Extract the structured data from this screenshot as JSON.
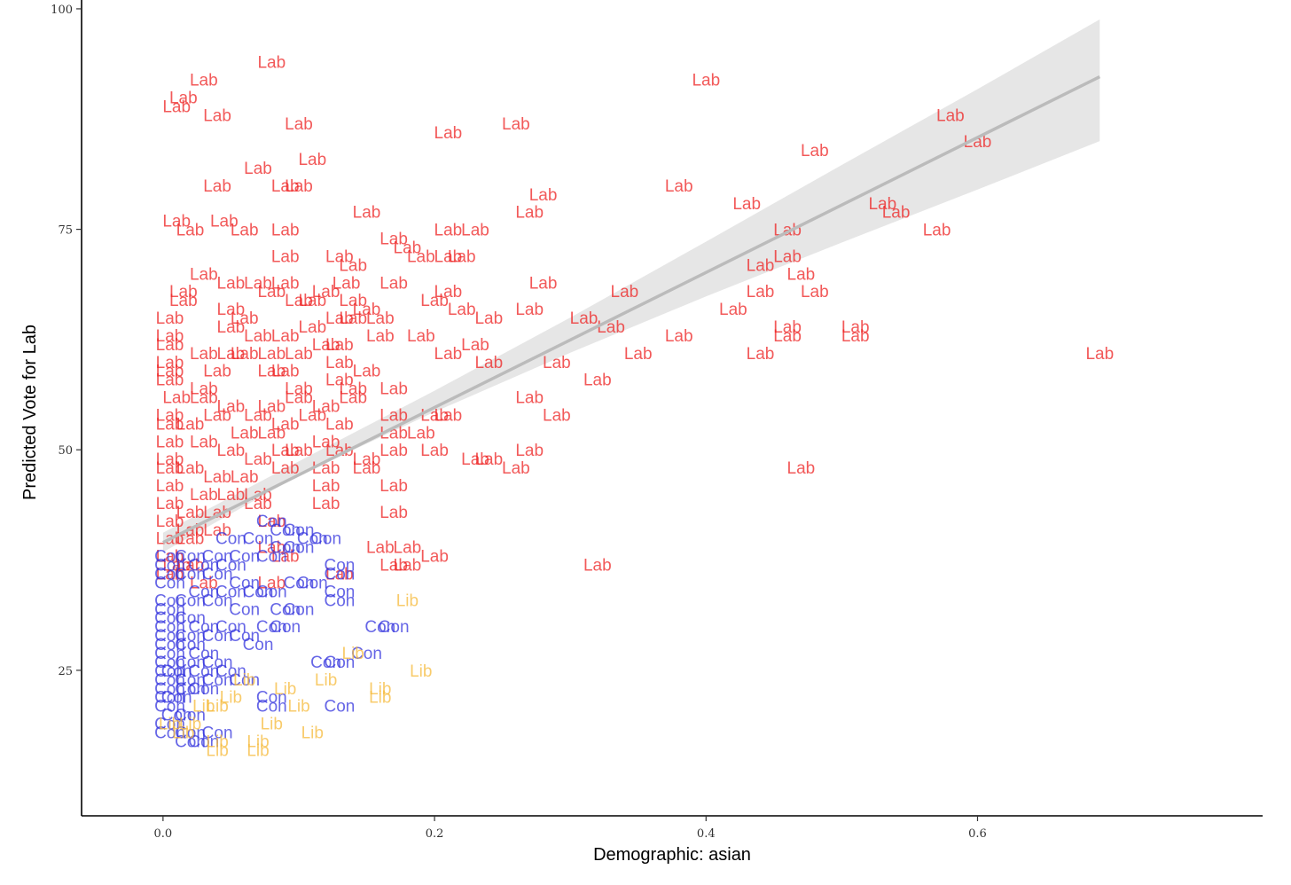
{
  "chart_data": {
    "type": "scatter",
    "xlabel": "Demographic: asian",
    "ylabel": "Predicted Vote for Lab",
    "xlim": [
      -0.06,
      0.81
    ],
    "ylim": [
      8.5,
      101
    ],
    "xticks": [
      0.0,
      0.2,
      0.4,
      0.6
    ],
    "xtick_labels": [
      "0.0",
      "0.2",
      "0.4",
      "0.6"
    ],
    "yticks": [
      25,
      50,
      75,
      100
    ],
    "ytick_labels": [
      "25",
      "50",
      "75",
      "100"
    ],
    "grid": false,
    "legend": "none",
    "colors": {
      "Lab": "#ee2222",
      "Con": "#3333dd",
      "Lib": "#f5b93a",
      "fit": "#bbbbbb",
      "band": "#e6e6e6"
    },
    "fit_line": {
      "x0": 0.0,
      "y0": 39.5,
      "x1": 0.69,
      "y1": 92.3
    },
    "confidence_band": {
      "x": [
        0.0,
        0.1,
        0.2,
        0.3,
        0.4,
        0.5,
        0.6,
        0.69
      ],
      "lower": [
        38.4,
        47.1,
        54.3,
        61.0,
        67.4,
        73.5,
        79.5,
        85.0
      ],
      "upper": [
        40.6,
        48.7,
        56.7,
        65.0,
        73.6,
        82.3,
        90.9,
        98.8
      ]
    },
    "series": [
      {
        "name": "Lab",
        "points": [
          [
            0.08,
            94
          ],
          [
            0.03,
            92
          ],
          [
            0.015,
            90
          ],
          [
            0.01,
            89
          ],
          [
            0.4,
            92
          ],
          [
            0.04,
            88
          ],
          [
            0.1,
            87
          ],
          [
            0.58,
            88
          ],
          [
            0.21,
            86
          ],
          [
            0.26,
            87
          ],
          [
            0.6,
            85
          ],
          [
            0.11,
            83
          ],
          [
            0.48,
            84
          ],
          [
            0.07,
            82
          ],
          [
            0.04,
            80
          ],
          [
            0.09,
            80
          ],
          [
            0.1,
            80
          ],
          [
            0.38,
            80
          ],
          [
            0.28,
            79
          ],
          [
            0.43,
            78
          ],
          [
            0.53,
            78
          ],
          [
            0.54,
            77
          ],
          [
            0.27,
            77
          ],
          [
            0.01,
            76
          ],
          [
            0.15,
            77
          ],
          [
            0.06,
            75
          ],
          [
            0.045,
            76
          ],
          [
            0.09,
            75
          ],
          [
            0.21,
            75
          ],
          [
            0.23,
            75
          ],
          [
            0.02,
            75
          ],
          [
            0.17,
            74
          ],
          [
            0.18,
            73
          ],
          [
            0.46,
            75
          ],
          [
            0.57,
            75
          ],
          [
            0.09,
            72
          ],
          [
            0.13,
            72
          ],
          [
            0.19,
            72
          ],
          [
            0.22,
            72
          ],
          [
            0.21,
            72
          ],
          [
            0.14,
            71
          ],
          [
            0.03,
            70
          ],
          [
            0.05,
            69
          ],
          [
            0.07,
            69
          ],
          [
            0.09,
            69
          ],
          [
            0.44,
            71
          ],
          [
            0.46,
            72
          ],
          [
            0.47,
            70
          ],
          [
            0.015,
            68
          ],
          [
            0.08,
            68
          ],
          [
            0.12,
            68
          ],
          [
            0.135,
            69
          ],
          [
            0.17,
            69
          ],
          [
            0.28,
            69
          ],
          [
            0.34,
            68
          ],
          [
            0.48,
            68
          ],
          [
            0.2,
            67
          ],
          [
            0.21,
            68
          ],
          [
            0.015,
            67
          ],
          [
            0.05,
            66
          ],
          [
            0.06,
            65
          ],
          [
            0.1,
            67
          ],
          [
            0.11,
            67
          ],
          [
            0.14,
            67
          ],
          [
            0.15,
            66
          ],
          [
            0.16,
            65
          ],
          [
            0.22,
            66
          ],
          [
            0.24,
            65
          ],
          [
            0.27,
            66
          ],
          [
            0.31,
            65
          ],
          [
            0.33,
            64
          ],
          [
            0.42,
            66
          ],
          [
            0.44,
            68
          ],
          [
            0.46,
            64
          ],
          [
            0.51,
            64
          ],
          [
            0.005,
            65
          ],
          [
            0.005,
            63
          ],
          [
            0.05,
            64
          ],
          [
            0.07,
            63
          ],
          [
            0.09,
            63
          ],
          [
            0.11,
            64
          ],
          [
            0.13,
            65
          ],
          [
            0.14,
            65
          ],
          [
            0.16,
            63
          ],
          [
            0.19,
            63
          ],
          [
            0.46,
            63
          ],
          [
            0.51,
            63
          ],
          [
            0.38,
            63
          ],
          [
            0.005,
            62
          ],
          [
            0.03,
            61
          ],
          [
            0.05,
            61
          ],
          [
            0.06,
            61
          ],
          [
            0.08,
            61
          ],
          [
            0.1,
            61
          ],
          [
            0.12,
            62
          ],
          [
            0.13,
            62
          ],
          [
            0.21,
            61
          ],
          [
            0.23,
            62
          ],
          [
            0.35,
            61
          ],
          [
            0.44,
            61
          ],
          [
            0.69,
            61
          ],
          [
            0.005,
            60
          ],
          [
            0.005,
            59
          ],
          [
            0.04,
            59
          ],
          [
            0.08,
            59
          ],
          [
            0.09,
            59
          ],
          [
            0.13,
            60
          ],
          [
            0.15,
            59
          ],
          [
            0.24,
            60
          ],
          [
            0.29,
            60
          ],
          [
            0.005,
            58
          ],
          [
            0.03,
            57
          ],
          [
            0.1,
            57
          ],
          [
            0.13,
            58
          ],
          [
            0.14,
            57
          ],
          [
            0.32,
            58
          ],
          [
            0.01,
            56
          ],
          [
            0.03,
            56
          ],
          [
            0.05,
            55
          ],
          [
            0.08,
            55
          ],
          [
            0.1,
            56
          ],
          [
            0.12,
            55
          ],
          [
            0.14,
            56
          ],
          [
            0.005,
            54
          ],
          [
            0.04,
            54
          ],
          [
            0.07,
            54
          ],
          [
            0.09,
            53
          ],
          [
            0.11,
            54
          ],
          [
            0.13,
            53
          ],
          [
            0.17,
            54
          ],
          [
            0.2,
            54
          ],
          [
            0.21,
            54
          ],
          [
            0.005,
            53
          ],
          [
            0.02,
            53
          ],
          [
            0.06,
            52
          ],
          [
            0.08,
            52
          ],
          [
            0.12,
            51
          ],
          [
            0.17,
            52
          ],
          [
            0.19,
            52
          ],
          [
            0.27,
            56
          ],
          [
            0.29,
            54
          ],
          [
            0.17,
            57
          ],
          [
            0.005,
            51
          ],
          [
            0.03,
            51
          ],
          [
            0.05,
            50
          ],
          [
            0.07,
            49
          ],
          [
            0.09,
            50
          ],
          [
            0.1,
            50
          ],
          [
            0.13,
            50
          ],
          [
            0.15,
            49
          ],
          [
            0.17,
            50
          ],
          [
            0.2,
            50
          ],
          [
            0.23,
            49
          ],
          [
            0.24,
            49
          ],
          [
            0.27,
            50
          ],
          [
            0.005,
            49
          ],
          [
            0.005,
            48
          ],
          [
            0.02,
            48
          ],
          [
            0.04,
            47
          ],
          [
            0.06,
            47
          ],
          [
            0.09,
            48
          ],
          [
            0.12,
            48
          ],
          [
            0.15,
            48
          ],
          [
            0.26,
            48
          ],
          [
            0.47,
            48
          ],
          [
            0.005,
            46
          ],
          [
            0.03,
            45
          ],
          [
            0.05,
            45
          ],
          [
            0.07,
            45
          ],
          [
            0.12,
            46
          ],
          [
            0.17,
            46
          ],
          [
            0.005,
            44
          ],
          [
            0.02,
            43
          ],
          [
            0.04,
            43
          ],
          [
            0.07,
            44
          ],
          [
            0.12,
            44
          ],
          [
            0.005,
            42
          ],
          [
            0.02,
            41
          ],
          [
            0.04,
            41
          ],
          [
            0.08,
            42
          ],
          [
            0.17,
            43
          ],
          [
            0.005,
            40
          ],
          [
            0.02,
            40
          ],
          [
            0.08,
            39
          ],
          [
            0.09,
            38
          ],
          [
            0.16,
            39
          ],
          [
            0.18,
            39
          ],
          [
            0.2,
            38
          ],
          [
            0.005,
            38
          ],
          [
            0.01,
            37
          ],
          [
            0.02,
            37
          ],
          [
            0.17,
            37
          ],
          [
            0.18,
            37
          ],
          [
            0.32,
            37
          ],
          [
            0.005,
            36
          ],
          [
            0.03,
            35
          ],
          [
            0.08,
            35
          ],
          [
            0.13,
            36
          ]
        ]
      },
      {
        "name": "Con",
        "points": [
          [
            0.08,
            42
          ],
          [
            0.09,
            41
          ],
          [
            0.1,
            41
          ],
          [
            0.11,
            40
          ],
          [
            0.12,
            40
          ],
          [
            0.05,
            40
          ],
          [
            0.07,
            40
          ],
          [
            0.09,
            39
          ],
          [
            0.1,
            39
          ],
          [
            0.005,
            38
          ],
          [
            0.02,
            38
          ],
          [
            0.04,
            38
          ],
          [
            0.06,
            38
          ],
          [
            0.08,
            38
          ],
          [
            0.005,
            37
          ],
          [
            0.03,
            37
          ],
          [
            0.05,
            37
          ],
          [
            0.13,
            37
          ],
          [
            0.13,
            36
          ],
          [
            0.005,
            36
          ],
          [
            0.02,
            36
          ],
          [
            0.04,
            36
          ],
          [
            0.06,
            35
          ],
          [
            0.1,
            35
          ],
          [
            0.11,
            35
          ],
          [
            0.005,
            35
          ],
          [
            0.03,
            34
          ],
          [
            0.05,
            34
          ],
          [
            0.07,
            34
          ],
          [
            0.08,
            34
          ],
          [
            0.13,
            34
          ],
          [
            0.13,
            33
          ],
          [
            0.005,
            33
          ],
          [
            0.02,
            33
          ],
          [
            0.04,
            33
          ],
          [
            0.06,
            32
          ],
          [
            0.09,
            32
          ],
          [
            0.1,
            32
          ],
          [
            0.005,
            32
          ],
          [
            0.005,
            31
          ],
          [
            0.02,
            31
          ],
          [
            0.03,
            30
          ],
          [
            0.05,
            30
          ],
          [
            0.08,
            30
          ],
          [
            0.09,
            30
          ],
          [
            0.16,
            30
          ],
          [
            0.17,
            30
          ],
          [
            0.005,
            30
          ],
          [
            0.005,
            29
          ],
          [
            0.02,
            29
          ],
          [
            0.04,
            29
          ],
          [
            0.06,
            29
          ],
          [
            0.07,
            28
          ],
          [
            0.005,
            28
          ],
          [
            0.02,
            28
          ],
          [
            0.03,
            27
          ],
          [
            0.005,
            27
          ],
          [
            0.005,
            26
          ],
          [
            0.02,
            26
          ],
          [
            0.04,
            26
          ],
          [
            0.15,
            27
          ],
          [
            0.12,
            26
          ],
          [
            0.13,
            26
          ],
          [
            0.005,
            25
          ],
          [
            0.01,
            25
          ],
          [
            0.03,
            25
          ],
          [
            0.05,
            25
          ],
          [
            0.005,
            24
          ],
          [
            0.02,
            24
          ],
          [
            0.04,
            24
          ],
          [
            0.06,
            24
          ],
          [
            0.005,
            23
          ],
          [
            0.02,
            23
          ],
          [
            0.03,
            23
          ],
          [
            0.005,
            22
          ],
          [
            0.01,
            22
          ],
          [
            0.08,
            22
          ],
          [
            0.08,
            21
          ],
          [
            0.13,
            21
          ],
          [
            0.005,
            21
          ],
          [
            0.01,
            20
          ],
          [
            0.02,
            20
          ],
          [
            0.005,
            19
          ],
          [
            0.005,
            18
          ],
          [
            0.02,
            18
          ],
          [
            0.04,
            18
          ],
          [
            0.02,
            17
          ],
          [
            0.03,
            17
          ]
        ]
      },
      {
        "name": "Lib",
        "points": [
          [
            0.18,
            33
          ],
          [
            0.14,
            27
          ],
          [
            0.19,
            25
          ],
          [
            0.12,
            24
          ],
          [
            0.06,
            24
          ],
          [
            0.09,
            23
          ],
          [
            0.16,
            23
          ],
          [
            0.16,
            22
          ],
          [
            0.05,
            22
          ],
          [
            0.03,
            21
          ],
          [
            0.04,
            21
          ],
          [
            0.1,
            21
          ],
          [
            0.08,
            19
          ],
          [
            0.02,
            19
          ],
          [
            0.11,
            18
          ],
          [
            0.04,
            17
          ],
          [
            0.07,
            17
          ],
          [
            0.04,
            16
          ],
          [
            0.07,
            16
          ],
          [
            0.005,
            19
          ],
          [
            0.015,
            18
          ]
        ]
      }
    ]
  }
}
